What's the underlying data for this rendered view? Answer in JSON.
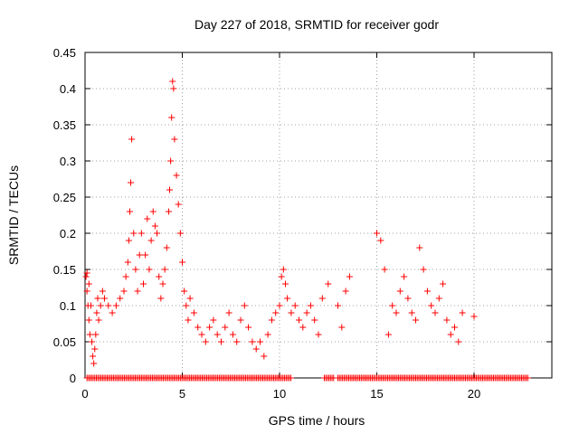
{
  "chart_data": {
    "type": "scatter",
    "title": "Day 227 of 2018, SRMTID for receiver godr",
    "xlabel": "GPS time / hours",
    "ylabel": "SRMTID / TECUs",
    "xlim": [
      0,
      24
    ],
    "ylim": [
      0,
      0.45
    ],
    "x_ticks": [
      0,
      5,
      10,
      15,
      20
    ],
    "x_tick_labels": [
      "0",
      "5",
      "10",
      "15",
      "20"
    ],
    "y_ticks": [
      0,
      0.05,
      0.1,
      0.15,
      0.2,
      0.25,
      0.3,
      0.35,
      0.4,
      0.45
    ],
    "y_tick_labels": [
      "0",
      "0.05",
      "0.1",
      "0.15",
      "0.2",
      "0.25",
      "0.3",
      "0.35",
      "0.4",
      "0.45"
    ],
    "grid": true,
    "marker": "plus",
    "series_color": "#ff0000",
    "points": [
      [
        0.05,
        0.14
      ],
      [
        0.1,
        0.12
      ],
      [
        0.15,
        0.1
      ],
      [
        0.2,
        0.08
      ],
      [
        0.25,
        0.06
      ],
      [
        0.1,
        0.145
      ],
      [
        0.2,
        0.13
      ],
      [
        0.3,
        0.1
      ],
      [
        0.35,
        0.05
      ],
      [
        0.4,
        0.03
      ],
      [
        0.45,
        0.02
      ],
      [
        0.5,
        0.04
      ],
      [
        0.55,
        0.06
      ],
      [
        0.6,
        0.09
      ],
      [
        0.65,
        0.11
      ],
      [
        0.7,
        0.08
      ],
      [
        0.8,
        0.1
      ],
      [
        0.9,
        0.12
      ],
      [
        1.0,
        0.11
      ],
      [
        1.2,
        0.1
      ],
      [
        1.4,
        0.09
      ],
      [
        1.6,
        0.1
      ],
      [
        1.8,
        0.11
      ],
      [
        2.0,
        0.12
      ],
      [
        2.1,
        0.14
      ],
      [
        2.2,
        0.16
      ],
      [
        2.25,
        0.19
      ],
      [
        2.3,
        0.23
      ],
      [
        2.35,
        0.27
      ],
      [
        2.4,
        0.33
      ],
      [
        2.5,
        0.2
      ],
      [
        2.6,
        0.15
      ],
      [
        2.7,
        0.12
      ],
      [
        2.8,
        0.17
      ],
      [
        2.9,
        0.2
      ],
      [
        3.0,
        0.13
      ],
      [
        3.1,
        0.17
      ],
      [
        3.2,
        0.22
      ],
      [
        3.3,
        0.15
      ],
      [
        3.4,
        0.19
      ],
      [
        3.5,
        0.23
      ],
      [
        3.6,
        0.21
      ],
      [
        3.7,
        0.2
      ],
      [
        3.8,
        0.14
      ],
      [
        3.9,
        0.11
      ],
      [
        4.0,
        0.13
      ],
      [
        4.1,
        0.15
      ],
      [
        4.2,
        0.18
      ],
      [
        4.3,
        0.23
      ],
      [
        4.35,
        0.26
      ],
      [
        4.4,
        0.3
      ],
      [
        4.45,
        0.36
      ],
      [
        4.5,
        0.41
      ],
      [
        4.55,
        0.4
      ],
      [
        4.6,
        0.33
      ],
      [
        4.7,
        0.28
      ],
      [
        4.8,
        0.24
      ],
      [
        4.9,
        0.2
      ],
      [
        5.0,
        0.16
      ],
      [
        5.1,
        0.12
      ],
      [
        5.2,
        0.1
      ],
      [
        5.3,
        0.08
      ],
      [
        5.4,
        0.11
      ],
      [
        5.6,
        0.09
      ],
      [
        5.8,
        0.07
      ],
      [
        6.0,
        0.06
      ],
      [
        6.2,
        0.05
      ],
      [
        6.4,
        0.07
      ],
      [
        6.6,
        0.08
      ],
      [
        6.8,
        0.06
      ],
      [
        7.0,
        0.05
      ],
      [
        7.2,
        0.07
      ],
      [
        7.4,
        0.09
      ],
      [
        7.6,
        0.06
      ],
      [
        7.8,
        0.05
      ],
      [
        8.0,
        0.08
      ],
      [
        8.2,
        0.1
      ],
      [
        8.4,
        0.07
      ],
      [
        8.6,
        0.05
      ],
      [
        8.8,
        0.04
      ],
      [
        9.0,
        0.05
      ],
      [
        9.2,
        0.03
      ],
      [
        9.4,
        0.06
      ],
      [
        9.6,
        0.08
      ],
      [
        9.8,
        0.09
      ],
      [
        10.0,
        0.1
      ],
      [
        10.1,
        0.14
      ],
      [
        10.2,
        0.15
      ],
      [
        10.3,
        0.13
      ],
      [
        10.4,
        0.11
      ],
      [
        10.6,
        0.09
      ],
      [
        10.8,
        0.1
      ],
      [
        11.0,
        0.08
      ],
      [
        11.2,
        0.07
      ],
      [
        11.4,
        0.09
      ],
      [
        11.6,
        0.1
      ],
      [
        11.8,
        0.08
      ],
      [
        12.0,
        0.06
      ],
      [
        12.2,
        0.11
      ],
      [
        12.5,
        0.13
      ],
      [
        13.0,
        0.1
      ],
      [
        13.2,
        0.07
      ],
      [
        13.4,
        0.12
      ],
      [
        13.6,
        0.14
      ],
      [
        15.0,
        0.2
      ],
      [
        15.2,
        0.19
      ],
      [
        15.4,
        0.15
      ],
      [
        15.6,
        0.06
      ],
      [
        15.8,
        0.1
      ],
      [
        16.0,
        0.09
      ],
      [
        16.2,
        0.12
      ],
      [
        16.4,
        0.14
      ],
      [
        16.6,
        0.11
      ],
      [
        16.8,
        0.09
      ],
      [
        17.0,
        0.08
      ],
      [
        17.2,
        0.18
      ],
      [
        17.4,
        0.15
      ],
      [
        17.6,
        0.12
      ],
      [
        17.8,
        0.1
      ],
      [
        18.0,
        0.09
      ],
      [
        18.2,
        0.11
      ],
      [
        18.4,
        0.13
      ],
      [
        18.6,
        0.08
      ],
      [
        18.8,
        0.06
      ],
      [
        19.0,
        0.07
      ],
      [
        19.2,
        0.05
      ],
      [
        19.4,
        0.09
      ],
      [
        20.0,
        0.085
      ]
    ],
    "zero_band": [
      [
        0.1,
        10.6
      ],
      [
        12.3,
        12.8
      ],
      [
        13.0,
        22.8
      ]
    ]
  }
}
